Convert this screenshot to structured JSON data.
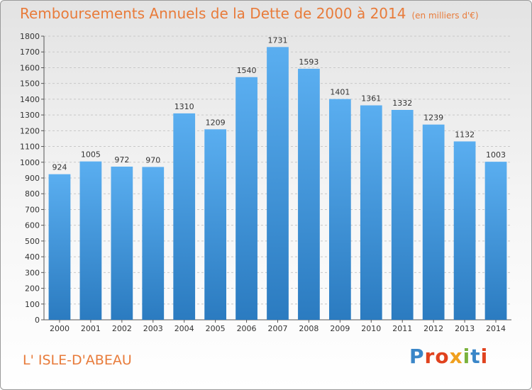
{
  "title": "Remboursements Annuels de la Dette de 2000 à 2014",
  "subtitle": "(en milliers d'€)",
  "location": "L' ISLE-D'ABEAU",
  "logo": {
    "text": "Proxiti",
    "colors": [
      "#3a86c8",
      "#e0421e",
      "#e0421e",
      "#f0a01e",
      "#7ab23c",
      "#3a86c8",
      "#e0421e"
    ]
  },
  "colors": {
    "bar_top": "#5aaef0",
    "bar_bottom": "#2b7bc0",
    "title": "#e87b3a"
  },
  "chart_data": {
    "type": "bar",
    "title": "Remboursements Annuels de la Dette de 2000 à 2014",
    "xlabel": "",
    "ylabel": "",
    "ylim": [
      0,
      1800
    ],
    "yticks": [
      0,
      100,
      200,
      300,
      400,
      500,
      600,
      700,
      800,
      900,
      1000,
      1100,
      1200,
      1300,
      1400,
      1500,
      1600,
      1700,
      1800
    ],
    "grid": true,
    "categories": [
      "2000",
      "2001",
      "2002",
      "2003",
      "2004",
      "2005",
      "2006",
      "2007",
      "2008",
      "2009",
      "2010",
      "2011",
      "2012",
      "2013",
      "2014"
    ],
    "values": [
      924,
      1005,
      972,
      970,
      1310,
      1209,
      1540,
      1731,
      1593,
      1401,
      1361,
      1332,
      1239,
      1132,
      1003
    ]
  }
}
